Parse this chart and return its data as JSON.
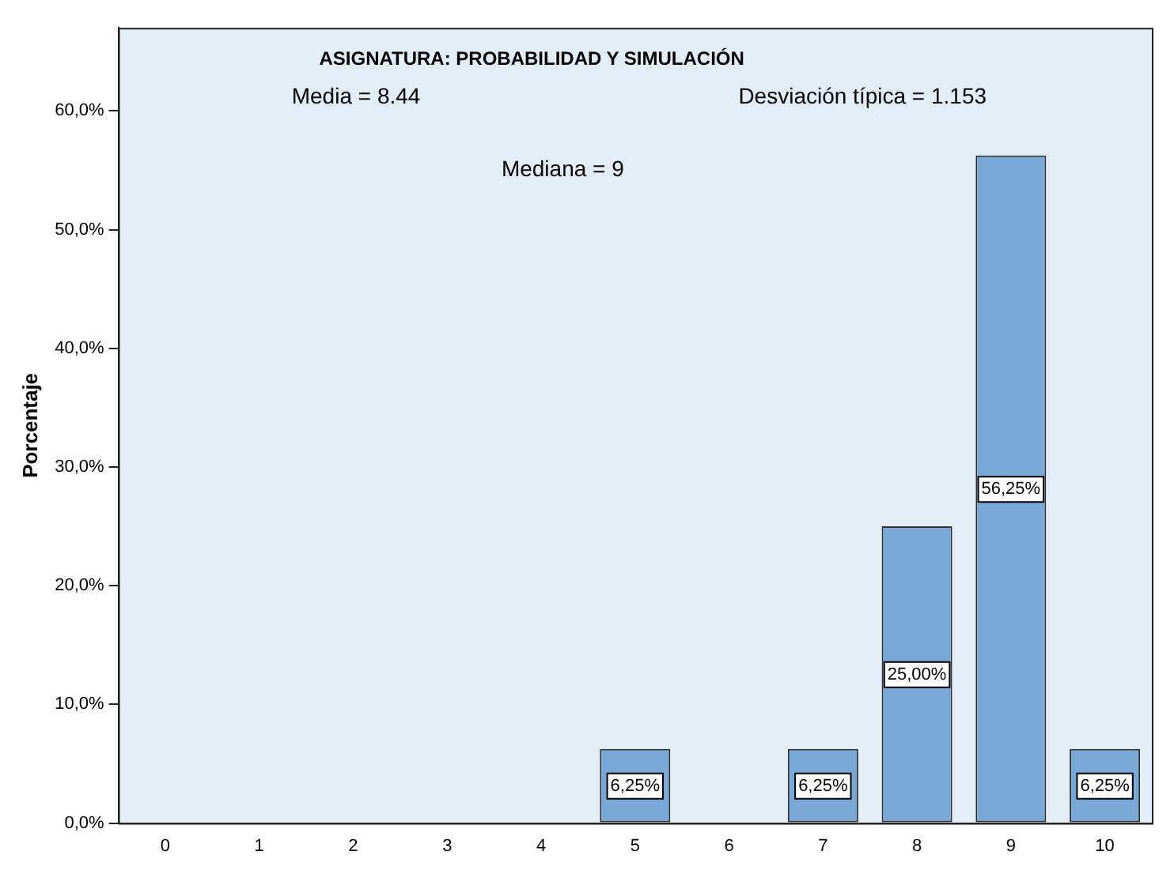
{
  "chart_data": {
    "type": "bar",
    "title": "ASIGNATURA: PROBABILIDAD Y SIMULACIÓN",
    "ylabel": "Porcentaje",
    "categories": [
      "0",
      "1",
      "2",
      "3",
      "4",
      "5",
      "6",
      "7",
      "8",
      "9",
      "10"
    ],
    "values": [
      0,
      0,
      0,
      0,
      0,
      6.25,
      0,
      6.25,
      25,
      56.25,
      6.25
    ],
    "value_labels": [
      null,
      null,
      null,
      null,
      null,
      "6,25%",
      null,
      "6,25%",
      "25,00%",
      "56,25%",
      "6,25%"
    ],
    "color": "#79a8d7",
    "ylim": [
      0,
      67
    ],
    "yticks": [
      {
        "value": 0,
        "label": "0,0%"
      },
      {
        "value": 10,
        "label": "10,0%"
      },
      {
        "value": 20,
        "label": "20,0%"
      },
      {
        "value": 30,
        "label": "30,0%"
      },
      {
        "value": 40,
        "label": "40,0%"
      },
      {
        "value": 50,
        "label": "50,0%"
      },
      {
        "value": 60,
        "label": "60,0%"
      }
    ],
    "annotations": [
      "Media = 8.44",
      "Desviación típica = 1.153",
      "Mediana = 9"
    ],
    "grid": false,
    "legend": false
  }
}
